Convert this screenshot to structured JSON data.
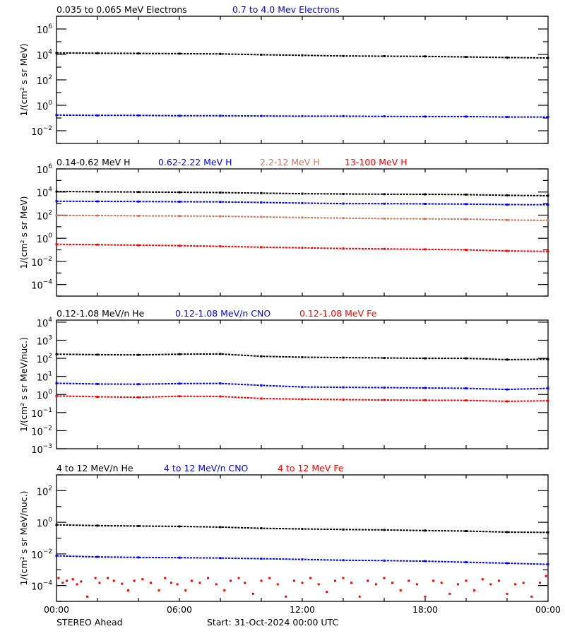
{
  "colors": {
    "black": "#000000",
    "blue": "#0000ff",
    "brown": "#c8785a",
    "red": "#ff0000"
  },
  "x_axis": {
    "range_hours": [
      0,
      24
    ],
    "tick_labels": [
      "00:00",
      "06:00",
      "12:00",
      "18:00",
      "00:00"
    ],
    "tick_hours": [
      0,
      6,
      12,
      18,
      24
    ],
    "minor_step_hours": 2
  },
  "footer": {
    "left": "STEREO Ahead",
    "center": "Start: 31-Oct-2024 00:00 UTC"
  },
  "chart_data": [
    {
      "type": "scatter",
      "yscale": "log",
      "ylabel": "1/(cm² s sr MeV)",
      "ylim": [
        0.001,
        10000000
      ],
      "ytick_exponents": [
        -2,
        0,
        2,
        4,
        6
      ],
      "x_hours": [
        0,
        2,
        4,
        6,
        8,
        10,
        12,
        14,
        16,
        18,
        20,
        22,
        24
      ],
      "series": [
        {
          "name": "0.035 to 0.065 MeV Electrons",
          "color": "#000000",
          "values": [
            13000,
            12500,
            12000,
            11500,
            11000,
            9500,
            8500,
            7500,
            7300,
            7000,
            6300,
            5700,
            5300
          ]
        },
        {
          "name": "0.7 to 4.0 Mev Electrons",
          "color": "#0000ff",
          "values": [
            0.17,
            0.16,
            0.16,
            0.15,
            0.15,
            0.145,
            0.14,
            0.14,
            0.135,
            0.13,
            0.13,
            0.12,
            0.12
          ]
        }
      ]
    },
    {
      "type": "scatter",
      "yscale": "log",
      "ylabel": "1/(cm² s sr MeV)",
      "ylim": [
        1e-05,
        1000000
      ],
      "ytick_exponents": [
        -4,
        -2,
        0,
        2,
        4,
        6
      ],
      "x_hours": [
        0,
        2,
        4,
        6,
        8,
        10,
        12,
        14,
        16,
        18,
        20,
        22,
        24
      ],
      "series": [
        {
          "name": "0.14-0.62 MeV H",
          "color": "#000000",
          "values": [
            11000,
            10500,
            10000,
            9500,
            9000,
            8000,
            7200,
            6800,
            6500,
            6300,
            6000,
            5200,
            4800
          ]
        },
        {
          "name": "0.62-2.22 MeV H",
          "color": "#0000ff",
          "values": [
            1600,
            1550,
            1500,
            1450,
            1400,
            1250,
            1100,
            1000,
            980,
            950,
            900,
            820,
            800
          ]
        },
        {
          "name": "2.2-12 MeV H",
          "color": "#c8785a",
          "values": [
            95,
            92,
            88,
            85,
            80,
            70,
            62,
            55,
            50,
            48,
            45,
            38,
            35
          ]
        },
        {
          "name": "13-100 MeV H",
          "color": "#ff0000",
          "values": [
            0.3,
            0.28,
            0.25,
            0.23,
            0.2,
            0.17,
            0.15,
            0.13,
            0.12,
            0.11,
            0.1,
            0.08,
            0.074
          ]
        }
      ]
    },
    {
      "type": "scatter",
      "yscale": "log",
      "ylabel": "1/(cm² s sr MeV/nuc.)",
      "ylim": [
        0.001,
        13000
      ],
      "ytick_exponents": [
        -3,
        -2,
        -1,
        0,
        1,
        2,
        3,
        4
      ],
      "x_hours": [
        0,
        2,
        4,
        6,
        8,
        10,
        12,
        14,
        16,
        18,
        20,
        22,
        24
      ],
      "series": [
        {
          "name": "0.12-1.08 MeV/n He",
          "color": "#000000",
          "values": [
            170,
            160,
            155,
            170,
            175,
            130,
            115,
            110,
            105,
            100,
            100,
            85,
            90
          ]
        },
        {
          "name": "0.12-1.08 MeV/n CNO",
          "color": "#0000ff",
          "values": [
            4.2,
            3.8,
            3.7,
            4.0,
            4.1,
            3.2,
            2.6,
            2.5,
            2.4,
            2.3,
            2.2,
            1.9,
            2.2
          ]
        },
        {
          "name": "0.12-1.08 MeV Fe",
          "color": "#ff0000",
          "values": [
            0.83,
            0.75,
            0.7,
            0.8,
            0.78,
            0.6,
            0.55,
            0.52,
            0.5,
            0.48,
            0.47,
            0.42,
            0.45
          ]
        }
      ]
    },
    {
      "type": "scatter",
      "yscale": "log",
      "ylabel": "1/(cm² s sr MeV/nuc.)",
      "ylim": [
        1e-05,
        1000
      ],
      "ytick_exponents": [
        -4,
        -2,
        0,
        2
      ],
      "x_hours": [
        0,
        2,
        4,
        6,
        8,
        10,
        12,
        14,
        16,
        18,
        20,
        22,
        24
      ],
      "series": [
        {
          "name": "4 to 12 MeV/n He",
          "color": "#000000",
          "values": [
            0.69,
            0.62,
            0.58,
            0.55,
            0.5,
            0.42,
            0.38,
            0.35,
            0.33,
            0.3,
            0.28,
            0.24,
            0.23
          ]
        },
        {
          "name": "4 to 12 MeV/n CNO",
          "color": "#0000ff",
          "values": [
            0.0076,
            0.0065,
            0.006,
            0.0058,
            0.0055,
            0.005,
            0.0045,
            0.004,
            0.0038,
            0.0035,
            0.003,
            0.0026,
            0.0022
          ]
        },
        {
          "name": "4 to 12 MeV Fe",
          "color": "#ff0000",
          "points": [
            [
              0.1,
              0.0003
            ],
            [
              0.3,
              0.00015
            ],
            [
              0.5,
              0.0002
            ],
            [
              0.8,
              0.00025
            ],
            [
              1.0,
              0.00012
            ],
            [
              1.2,
              0.00018
            ],
            [
              1.5,
              2e-05
            ],
            [
              1.9,
              0.0003
            ],
            [
              2.1,
              0.00015
            ],
            [
              2.5,
              0.0003
            ],
            [
              2.8,
              0.0002
            ],
            [
              3.2,
              0.00013
            ],
            [
              3.5,
              5e-05
            ],
            [
              3.8,
              0.0002
            ],
            [
              4.2,
              0.00025
            ],
            [
              4.6,
              0.00015
            ],
            [
              5.0,
              5e-05
            ],
            [
              5.3,
              0.0003
            ],
            [
              5.6,
              0.00015
            ],
            [
              5.9,
              0.00012
            ],
            [
              6.3,
              5e-05
            ],
            [
              6.6,
              0.0002
            ],
            [
              7.0,
              0.00015
            ],
            [
              7.4,
              0.0003
            ],
            [
              7.8,
              0.00012
            ],
            [
              8.2,
              5e-05
            ],
            [
              8.5,
              0.0002
            ],
            [
              8.9,
              0.0003
            ],
            [
              9.2,
              0.00015
            ],
            [
              9.6,
              3e-05
            ],
            [
              10.0,
              0.0002
            ],
            [
              10.4,
              0.0003
            ],
            [
              10.8,
              0.00012
            ],
            [
              11.2,
              2e-05
            ],
            [
              11.6,
              0.0002
            ],
            [
              12.0,
              0.00015
            ],
            [
              12.4,
              0.0003
            ],
            [
              12.8,
              0.00012
            ],
            [
              13.2,
              4e-05
            ],
            [
              13.6,
              0.0002
            ],
            [
              14.0,
              0.0003
            ],
            [
              14.4,
              0.00015
            ],
            [
              14.8,
              2e-05
            ],
            [
              15.2,
              0.0002
            ],
            [
              15.6,
              0.00012
            ],
            [
              16.0,
              0.0003
            ],
            [
              16.4,
              0.00015
            ],
            [
              16.8,
              5e-05
            ],
            [
              17.2,
              0.0002
            ],
            [
              17.6,
              0.00012
            ],
            [
              18.0,
              2e-05
            ],
            [
              18.4,
              0.0002
            ],
            [
              18.8,
              0.00015
            ],
            [
              19.2,
              3e-05
            ],
            [
              19.6,
              0.00012
            ],
            [
              20.0,
              0.0002
            ],
            [
              20.4,
              5e-05
            ],
            [
              20.8,
              0.00025
            ],
            [
              21.2,
              0.00012
            ],
            [
              21.6,
              0.0002
            ],
            [
              22.0,
              3e-05
            ],
            [
              22.4,
              0.00012
            ],
            [
              22.8,
              0.00015
            ],
            [
              23.2,
              2e-05
            ],
            [
              23.6,
              0.00015
            ],
            [
              23.9,
              0.0004
            ]
          ]
        }
      ]
    }
  ]
}
